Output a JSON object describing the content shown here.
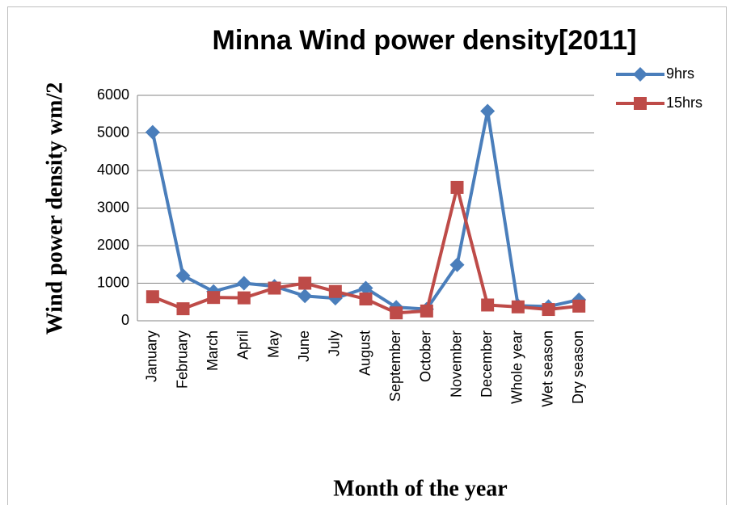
{
  "chart_data": {
    "type": "line",
    "title": "Minna Wind power density[2011]",
    "x_label": "Month of the year",
    "y_label": "Wind power density wm/2",
    "categories": [
      "January",
      "February",
      "March",
      "April",
      "May",
      "June",
      "July",
      "August",
      "September",
      "October",
      "November",
      "December",
      "Whole  year",
      "Wet season",
      "Dry season"
    ],
    "series": [
      {
        "name": "9hrs",
        "color": "#4a7ebb",
        "marker": "diamond",
        "values": [
          5020,
          1200,
          780,
          1000,
          920,
          660,
          600,
          870,
          360,
          310,
          1490,
          5580,
          400,
          380,
          560
        ]
      },
      {
        "name": "15hrs",
        "color": "#be4b48",
        "marker": "square",
        "values": [
          640,
          320,
          620,
          610,
          870,
          1000,
          780,
          580,
          210,
          260,
          3550,
          420,
          370,
          300,
          390
        ]
      }
    ],
    "ylim": [
      0,
      6000
    ],
    "yticks": [
      0,
      1000,
      2000,
      3000,
      4000,
      5000,
      6000
    ],
    "grid": true,
    "legend": "right"
  }
}
